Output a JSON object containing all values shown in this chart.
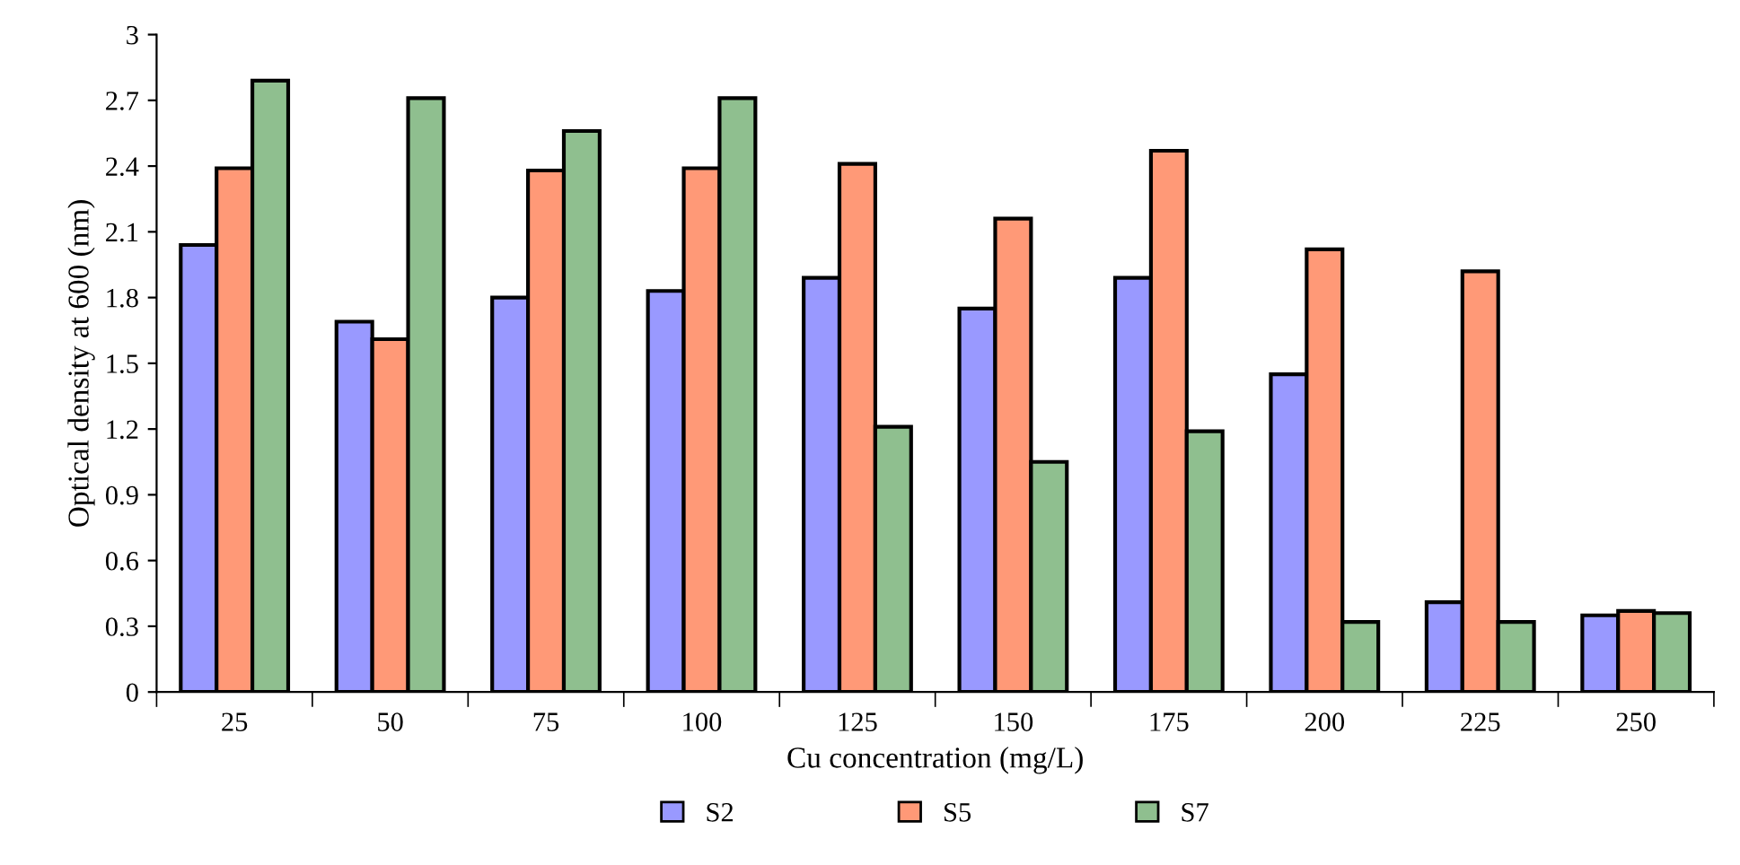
{
  "chart_data": {
    "type": "bar",
    "xlabel": "Cu concentration (mg/L)",
    "ylabel": "Optical density at 600 (nm)",
    "categories": [
      "25",
      "50",
      "75",
      "100",
      "125",
      "150",
      "175",
      "200",
      "225",
      "250"
    ],
    "series": [
      {
        "name": "S2",
        "color": "#9999ff",
        "values": [
          2.04,
          1.69,
          1.8,
          1.83,
          1.89,
          1.75,
          1.89,
          1.45,
          0.41,
          0.35
        ]
      },
      {
        "name": "S5",
        "color": "#ff9977",
        "values": [
          2.39,
          1.61,
          2.38,
          2.39,
          2.41,
          2.16,
          2.47,
          2.02,
          1.92,
          0.37
        ]
      },
      {
        "name": "S7",
        "color": "#8fbf8f",
        "values": [
          2.79,
          2.71,
          2.56,
          2.71,
          1.21,
          1.05,
          1.19,
          0.32,
          0.32,
          0.36
        ]
      }
    ],
    "ylim": [
      0,
      3
    ],
    "yticks": [
      0,
      0.3,
      0.6,
      0.9,
      1.2,
      1.5,
      1.8,
      2.1,
      2.4,
      2.7,
      3
    ],
    "grid": false,
    "legend": "bottom"
  }
}
